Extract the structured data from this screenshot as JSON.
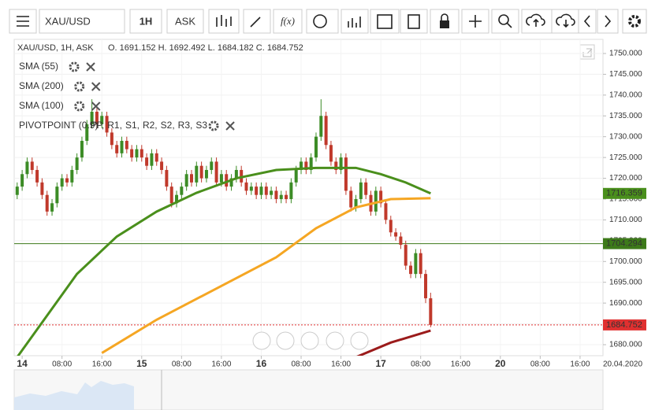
{
  "toolbar": {
    "symbol": "XAU/USD",
    "timeframe": "1H",
    "price_side": "ASK",
    "function_label": "f(x)"
  },
  "chart_data": {
    "type": "candlestick",
    "header": "XAU/USD, 1H, ASK",
    "ohlc_text": "O. 1691.152 H. 1692.492 L. 1684.182 C. 1684.752",
    "up_color": "#3c8c26",
    "down_color": "#c0392b",
    "x": [
      -1,
      0,
      1,
      2,
      3,
      4,
      5,
      6,
      7,
      8,
      9,
      10,
      11,
      12,
      13,
      14,
      15,
      16,
      17,
      18,
      19,
      20,
      21,
      22,
      23,
      24,
      25,
      26,
      27,
      28,
      29,
      30,
      31,
      32,
      33,
      34,
      35,
      36,
      37,
      38,
      39,
      40,
      41,
      42,
      43,
      44,
      45,
      46,
      47,
      48,
      49,
      50,
      51,
      52,
      53,
      54,
      55,
      56,
      57,
      58,
      59,
      60,
      61,
      62,
      63,
      64,
      65,
      66,
      67,
      68,
      69,
      70,
      71,
      72,
      73,
      74,
      75,
      76,
      77,
      78,
      79,
      80,
      81,
      82
    ],
    "open": [
      1716,
      1718,
      1721,
      1724,
      1722,
      1719,
      1716,
      1712,
      1714,
      1718,
      1720,
      1719,
      1722,
      1725,
      1729,
      1733,
      1736,
      1733,
      1735,
      1731,
      1728,
      1726,
      1729,
      1727,
      1725,
      1727,
      1725,
      1723,
      1726,
      1724,
      1722,
      1718,
      1714,
      1716,
      1718,
      1721,
      1719,
      1723,
      1720,
      1722,
      1724,
      1719,
      1721,
      1718,
      1720,
      1722,
      1719,
      1717,
      1718,
      1716,
      1718,
      1716,
      1717,
      1715,
      1716,
      1715,
      1719,
      1722,
      1724,
      1722,
      1725,
      1730,
      1735,
      1728,
      1724,
      1722,
      1725,
      1717,
      1713,
      1715,
      1719,
      1716,
      1712,
      1717,
      1714,
      1710,
      1707,
      1706,
      1704,
      1699,
      1697,
      1702,
      1697,
      1691.152
    ],
    "high": [
      1719,
      1722,
      1725,
      1725,
      1723,
      1720,
      1717,
      1715,
      1719,
      1721,
      1721,
      1723,
      1726,
      1730,
      1734,
      1739,
      1737,
      1736,
      1736,
      1732,
      1729,
      1730,
      1730,
      1728,
      1728,
      1728,
      1726,
      1727,
      1727,
      1725,
      1723,
      1719,
      1717,
      1719,
      1722,
      1722,
      1724,
      1724,
      1723,
      1725,
      1725,
      1722,
      1722,
      1721,
      1723,
      1723,
      1720,
      1719,
      1719,
      1719,
      1719,
      1718,
      1718,
      1717,
      1717,
      1720,
      1723,
      1725,
      1725,
      1726,
      1731,
      1739,
      1736,
      1729,
      1725,
      1726,
      1726,
      1718,
      1716,
      1720,
      1720,
      1717,
      1718,
      1718,
      1715,
      1711,
      1708,
      1707,
      1705,
      1700,
      1703,
      1703,
      1698,
      1692.492
    ],
    "low": [
      1715,
      1717,
      1720,
      1721,
      1718,
      1715,
      1711,
      1711,
      1713,
      1717,
      1718,
      1718,
      1721,
      1724,
      1728,
      1732,
      1732,
      1732,
      1730,
      1727,
      1725,
      1725,
      1726,
      1724,
      1724,
      1724,
      1722,
      1722,
      1723,
      1721,
      1717,
      1713,
      1713,
      1715,
      1717,
      1718,
      1718,
      1719,
      1719,
      1721,
      1718,
      1718,
      1717,
      1717,
      1719,
      1718,
      1716,
      1716,
      1715,
      1715,
      1715,
      1715,
      1714,
      1714,
      1714,
      1714,
      1718,
      1721,
      1721,
      1721,
      1724,
      1729,
      1727,
      1723,
      1721,
      1721,
      1716,
      1712,
      1712,
      1714,
      1715,
      1711,
      1711,
      1713,
      1709,
      1706,
      1705,
      1703,
      1698,
      1696,
      1696,
      1696,
      1690,
      1684.182
    ],
    "close": [
      1718,
      1721,
      1724,
      1722,
      1719,
      1716,
      1712,
      1714,
      1718,
      1720,
      1719,
      1722,
      1725,
      1729,
      1733,
      1736,
      1733,
      1735,
      1731,
      1728,
      1726,
      1729,
      1727,
      1725,
      1727,
      1725,
      1723,
      1726,
      1724,
      1722,
      1718,
      1714,
      1716,
      1718,
      1721,
      1719,
      1723,
      1720,
      1722,
      1724,
      1719,
      1721,
      1718,
      1720,
      1722,
      1719,
      1717,
      1718,
      1716,
      1718,
      1716,
      1717,
      1715,
      1716,
      1715,
      1719,
      1722,
      1724,
      1722,
      1725,
      1730,
      1735,
      1728,
      1724,
      1722,
      1725,
      1717,
      1713,
      1715,
      1719,
      1716,
      1712,
      1717,
      1714,
      1710,
      1707,
      1706,
      1704,
      1699,
      1697,
      1702,
      1697,
      1691.152,
      1684.752
    ],
    "indicators": [
      {
        "name": "SMA (55)",
        "color": "#4a8f1c",
        "x": [
          -1,
          5,
          11,
          19,
          27,
          35,
          43,
          51,
          59,
          67,
          72,
          77,
          82
        ],
        "values": [
          1677,
          1687,
          1697,
          1706,
          1712,
          1716.5,
          1720,
          1722,
          1722.5,
          1722.5,
          1721,
          1719,
          1716.359
        ]
      },
      {
        "name": "SMA (200)",
        "color": "#9b1b1b",
        "x": [
          67,
          74,
          82
        ],
        "values": [
          1677,
          1680.5,
          1683.4
        ]
      },
      {
        "name": "SMA (100)",
        "color": "#f5a623",
        "x": [
          16,
          27,
          35,
          43,
          51,
          59,
          67,
          74,
          82
        ],
        "values": [
          1678,
          1686,
          1691,
          1696,
          1701,
          1708,
          1713,
          1715,
          1715.2
        ]
      }
    ],
    "pivot": {
      "name": "PIVOTPOINT (0.9)",
      "levels": [
        {
          "name": "PP,",
          "color": "#4a90e2"
        },
        {
          "name": "R1,",
          "color": "#3a8f2a"
        },
        {
          "name": "S1,",
          "color": "#a52a2a"
        },
        {
          "name": "R2,",
          "color": "#d62728"
        },
        {
          "name": "S2,",
          "color": "#f0a020"
        },
        {
          "name": "R3,",
          "color": "#e8c000"
        },
        {
          "name": "S3",
          "color": "#f2d600"
        }
      ]
    },
    "hline": {
      "value": 1704.294,
      "color": "#3d7a1a"
    },
    "last_price_color": "#e03030",
    "xlim": [
      -1.6,
      116.6
    ],
    "xticks": [
      {
        "value": 0,
        "label": "14"
      },
      {
        "value": 8,
        "label": "08:00"
      },
      {
        "value": 16,
        "label": "16:00"
      },
      {
        "value": 24,
        "label": "15"
      },
      {
        "value": 32,
        "label": "08:00"
      },
      {
        "value": 40,
        "label": "16:00"
      },
      {
        "value": 48,
        "label": "16"
      },
      {
        "value": 56,
        "label": "08:00"
      },
      {
        "value": 64,
        "label": "16:00"
      },
      {
        "value": 72,
        "label": "17"
      },
      {
        "value": 80,
        "label": "08:00"
      },
      {
        "value": 88,
        "label": "16:00"
      },
      {
        "value": 96,
        "label": "20"
      },
      {
        "value": 104,
        "label": "08:00"
      },
      {
        "value": 112,
        "label": "16:00"
      }
    ],
    "date_label": "20.04.2020",
    "ylim": [
      1677.35,
      1753.4
    ],
    "yticks": [
      {
        "value": 1680,
        "label": "1680.000"
      },
      {
        "value": 1685,
        "label": "1685.000"
      },
      {
        "value": 1690,
        "label": "1690.000"
      },
      {
        "value": 1695,
        "label": "1695.000"
      },
      {
        "value": 1700,
        "label": "1700.000"
      },
      {
        "value": 1705,
        "label": "1705.000"
      },
      {
        "value": 1710,
        "label": "1710.000"
      },
      {
        "value": 1715,
        "label": "1715.000"
      },
      {
        "value": 1720,
        "label": "1720.000"
      },
      {
        "value": 1725,
        "label": "1725.000"
      },
      {
        "value": 1730,
        "label": "1730.000"
      },
      {
        "value": 1735,
        "label": "1735.000"
      },
      {
        "value": 1740,
        "label": "1740.000"
      },
      {
        "value": 1745,
        "label": "1745.000"
      },
      {
        "value": 1750,
        "label": "1750.000"
      }
    ],
    "grid": true
  }
}
